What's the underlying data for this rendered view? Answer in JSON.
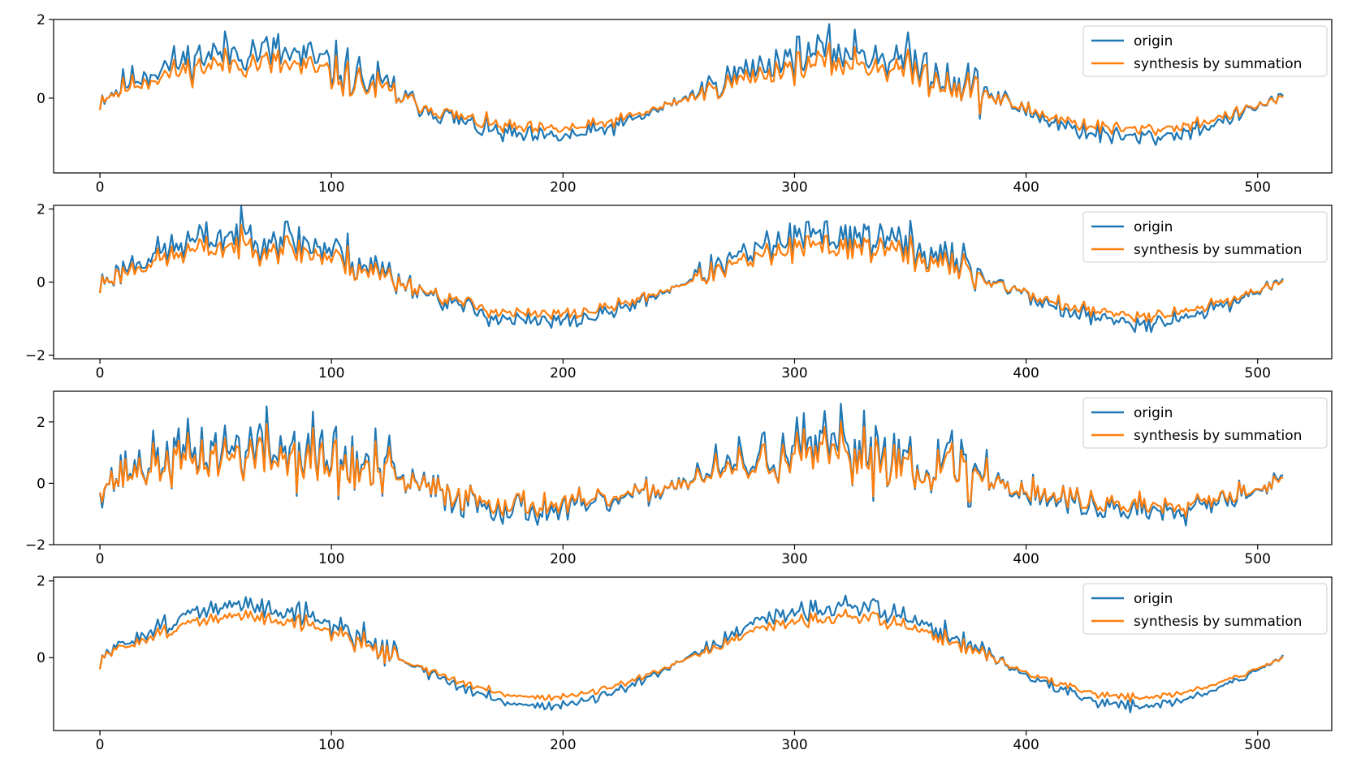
{
  "chart_data": [
    {
      "type": "line",
      "x": "sample index 0–511",
      "xlim": [
        -20,
        532
      ],
      "ylim": [
        -1.9,
        2.0
      ],
      "xticks": [
        0,
        100,
        200,
        300,
        400,
        500
      ],
      "yticks": [
        0,
        2
      ],
      "legend_position": "upper-right",
      "series": [
        {
          "name": "origin",
          "color": "#1f77b4",
          "envelope_amp": 1.1,
          "bias": 0.1,
          "noise": 0.3,
          "seed": 11
        },
        {
          "name": "synthesis by summation",
          "color": "#ff7f0e",
          "envelope_amp": 0.85,
          "bias": 0.05,
          "noise": 0.22,
          "seed": 11
        }
      ]
    },
    {
      "type": "line",
      "x": "sample index 0–511",
      "xlim": [
        -20,
        532
      ],
      "ylim": [
        -2.1,
        2.1
      ],
      "xticks": [
        0,
        100,
        200,
        300,
        400,
        500
      ],
      "yticks": [
        -2,
        0,
        2
      ],
      "legend_position": "upper-right",
      "series": [
        {
          "name": "origin",
          "color": "#1f77b4",
          "envelope_amp": 1.2,
          "bias": 0.1,
          "noise": 0.3,
          "seed": 23
        },
        {
          "name": "synthesis by summation",
          "color": "#ff7f0e",
          "envelope_amp": 0.95,
          "bias": 0.05,
          "noise": 0.22,
          "seed": 23
        }
      ]
    },
    {
      "type": "line",
      "x": "sample index 0–511",
      "xlim": [
        -20,
        532
      ],
      "ylim": [
        -2.0,
        3.0
      ],
      "xticks": [
        0,
        100,
        200,
        300,
        400,
        500
      ],
      "yticks": [
        -2,
        0,
        2
      ],
      "legend_position": "upper-right",
      "series": [
        {
          "name": "origin",
          "color": "#1f77b4",
          "envelope_amp": 1.0,
          "bias": 0.15,
          "noise": 0.65,
          "seed": 37
        },
        {
          "name": "synthesis by summation",
          "color": "#ff7f0e",
          "envelope_amp": 0.8,
          "bias": 0.1,
          "noise": 0.5,
          "seed": 37
        }
      ]
    },
    {
      "type": "line",
      "x": "sample index 0–511",
      "xlim": [
        -20,
        532
      ],
      "ylim": [
        -1.9,
        2.1
      ],
      "xticks": [
        0,
        100,
        200,
        300,
        400,
        500
      ],
      "yticks": [
        0,
        2
      ],
      "legend_position": "upper-right",
      "series": [
        {
          "name": "origin",
          "color": "#1f77b4",
          "envelope_amp": 1.3,
          "bias": 0.05,
          "noise": 0.16,
          "seed": 51
        },
        {
          "name": "synthesis by summation",
          "color": "#ff7f0e",
          "envelope_amp": 1.05,
          "bias": 0.02,
          "noise": 0.11,
          "seed": 51
        }
      ]
    }
  ]
}
